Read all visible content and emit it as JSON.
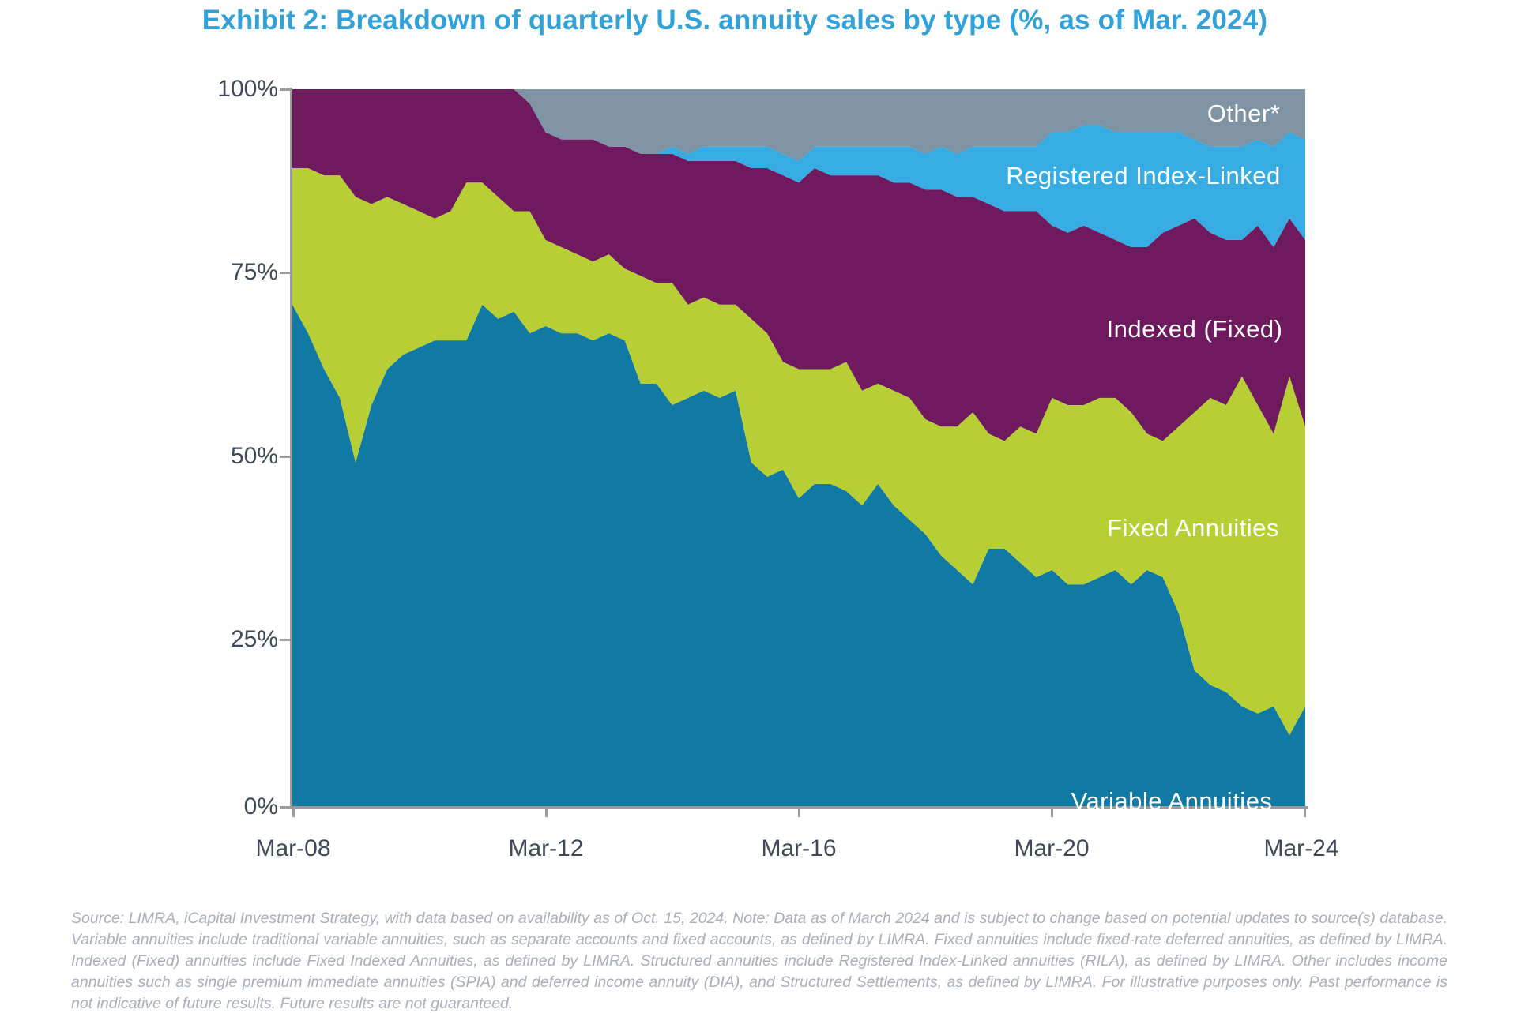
{
  "title": "Exhibit 2: Breakdown of quarterly U.S. annuity sales by type (%, as of Mar. 2024)",
  "footnote": "Source: LIMRA, iCapital Investment Strategy, with data based on availability as of Oct. 15, 2024. Note: Data as of March 2024 and is subject to change based on potential updates to source(s) database. Variable annuities include traditional variable annuities, such as separate accounts and fixed accounts, as defined by LIMRA. Fixed annuities include fixed-rate deferred annuities, as defined by LIMRA. Indexed (Fixed) annuities include Fixed Indexed Annuities, as defined by LIMRA. Structured annuities include Registered Index-Linked annuities (RILA), as defined by LIMRA. Other includes income annuities such as single premium immediate annuities (SPIA) and deferred income annuity (DIA), and Structured Settlements, as defined by LIMRA. For illustrative purposes only. Past performance is not indicative of future results. Future results are not guaranteed.",
  "axis_colors": {
    "label_text": "#3c4a5a",
    "axis_line": "#9b9b9b"
  },
  "chart_data": {
    "type": "area",
    "stacked": true,
    "unit": "percent",
    "title": "Exhibit 2: Breakdown of quarterly U.S. annuity sales by type (%, as of Mar. 2024)",
    "xlabel": "",
    "ylabel": "",
    "ylim": [
      0,
      100
    ],
    "grid": false,
    "legend_position": "labels-inside-areas",
    "y_axis_ticks": [
      "100%",
      "75%",
      "50%",
      "25%",
      "0%"
    ],
    "x_axis_ticks": [
      "Mar-08",
      "Mar-12",
      "Mar-16",
      "Mar-20",
      "Mar-24"
    ],
    "x": [
      "Mar-08",
      "Jun-08",
      "Sep-08",
      "Dec-08",
      "Mar-09",
      "Jun-09",
      "Sep-09",
      "Dec-09",
      "Mar-10",
      "Jun-10",
      "Sep-10",
      "Dec-10",
      "Mar-11",
      "Jun-11",
      "Sep-11",
      "Dec-11",
      "Mar-12",
      "Jun-12",
      "Sep-12",
      "Dec-12",
      "Mar-13",
      "Jun-13",
      "Sep-13",
      "Dec-13",
      "Mar-14",
      "Jun-14",
      "Sep-14",
      "Dec-14",
      "Mar-15",
      "Jun-15",
      "Sep-15",
      "Dec-15",
      "Mar-16",
      "Jun-16",
      "Sep-16",
      "Dec-16",
      "Mar-17",
      "Jun-17",
      "Sep-17",
      "Dec-17",
      "Mar-18",
      "Jun-18",
      "Sep-18",
      "Dec-18",
      "Mar-19",
      "Jun-19",
      "Sep-19",
      "Dec-19",
      "Mar-20",
      "Jun-20",
      "Sep-20",
      "Dec-20",
      "Mar-21",
      "Jun-21",
      "Sep-21",
      "Dec-21",
      "Mar-22",
      "Jun-22",
      "Sep-22",
      "Dec-22",
      "Mar-23",
      "Jun-23",
      "Sep-23",
      "Dec-23",
      "Mar-24"
    ],
    "series": [
      {
        "name": "Variable Annuities",
        "color": "#1079a4",
        "values": [
          70,
          66,
          61,
          57,
          48,
          56,
          61,
          63,
          64,
          65,
          65,
          65,
          70,
          68,
          69,
          66,
          67,
          66,
          66,
          65,
          66,
          65,
          59,
          59,
          56,
          57,
          58,
          57,
          58,
          48,
          46,
          47,
          43,
          45,
          45,
          44,
          42,
          45,
          42,
          40,
          38,
          35,
          33,
          31,
          36,
          36,
          34,
          32,
          33,
          31,
          31,
          32,
          33,
          31,
          33,
          32,
          27,
          19,
          17,
          16,
          14,
          13,
          14,
          10,
          14
        ]
      },
      {
        "name": "Fixed Annuities",
        "color": "#b7cf34",
        "values": [
          19,
          23,
          27,
          31,
          37,
          28,
          24,
          21,
          19,
          17,
          18,
          22,
          17,
          17,
          14,
          17,
          12,
          12,
          11,
          11,
          11,
          10,
          15,
          14,
          17,
          13,
          13,
          13,
          12,
          20,
          20,
          15,
          18,
          16,
          16,
          18,
          16,
          14,
          16,
          17,
          16,
          18,
          20,
          24,
          16,
          15,
          19,
          20,
          24,
          25,
          25,
          25,
          24,
          24,
          19,
          19,
          26,
          36,
          40,
          40,
          46,
          43,
          38,
          50,
          39
        ]
      },
      {
        "name": "Indexed (Fixed)",
        "color": "#6f1a5f",
        "values": [
          11,
          11,
          12,
          12,
          15,
          16,
          15,
          16,
          17,
          18,
          17,
          13,
          13,
          15,
          17,
          15,
          15,
          15,
          16,
          17,
          15,
          17,
          17,
          18,
          18,
          20,
          19,
          20,
          20,
          21,
          23,
          26,
          26,
          28,
          27,
          26,
          30,
          29,
          29,
          30,
          32,
          33,
          32,
          30,
          32,
          32,
          30,
          31,
          24,
          24,
          25,
          23,
          22,
          23,
          26,
          29,
          28,
          27,
          23,
          23,
          19,
          25,
          26,
          22,
          26
        ]
      },
      {
        "name": "Registered Index-Linked",
        "color": "#36ace2",
        "values": [
          0,
          0,
          0,
          0,
          0,
          0,
          0,
          0,
          0,
          0,
          0,
          0,
          0,
          0,
          0,
          0,
          0,
          0,
          0,
          0,
          0,
          0,
          0,
          0,
          1,
          1,
          2,
          2,
          2,
          3,
          3,
          3,
          3,
          3,
          4,
          4,
          4,
          4,
          5,
          5,
          5,
          6,
          6,
          7,
          8,
          9,
          9,
          9,
          13,
          14,
          14,
          15,
          15,
          16,
          16,
          14,
          13,
          11,
          12,
          13,
          13,
          12,
          14,
          12,
          14
        ]
      },
      {
        "name": "Other*",
        "color": "#7e93a3",
        "values": [
          0,
          0,
          0,
          0,
          0,
          0,
          0,
          0,
          0,
          0,
          0,
          0,
          0,
          0,
          0,
          2,
          6,
          7,
          7,
          7,
          8,
          8,
          9,
          9,
          8,
          9,
          8,
          8,
          8,
          8,
          8,
          9,
          10,
          8,
          8,
          8,
          8,
          8,
          8,
          8,
          9,
          8,
          9,
          8,
          8,
          8,
          8,
          8,
          6,
          6,
          5,
          5,
          6,
          6,
          6,
          6,
          6,
          7,
          8,
          8,
          8,
          7,
          8,
          6,
          7
        ]
      }
    ]
  }
}
